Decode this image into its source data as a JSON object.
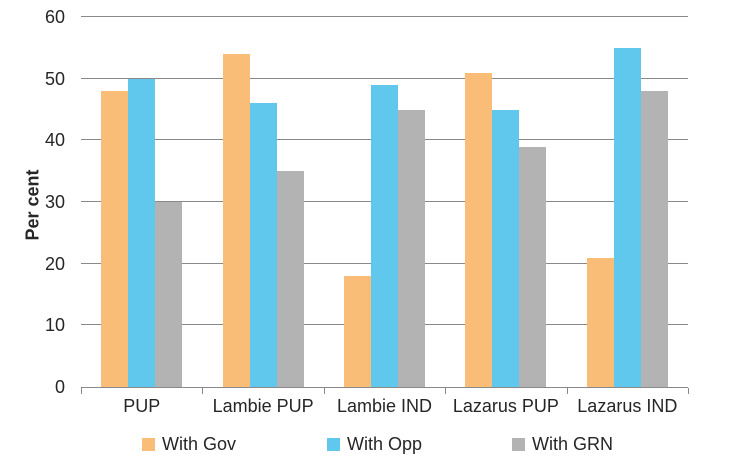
{
  "chart_data": {
    "type": "bar",
    "title": "",
    "ylabel": "Per cent",
    "xlabel": "",
    "ylim": [
      0,
      60
    ],
    "yticks": [
      0,
      10,
      20,
      30,
      40,
      50,
      60
    ],
    "grid": "horizontal",
    "legend_position": "bottom",
    "categories": [
      "PUP",
      "Lambie PUP",
      "Lambie IND",
      "Lazarus PUP",
      "Lazarus IND"
    ],
    "series": [
      {
        "name": "With Gov",
        "color": "#FABD78",
        "values": [
          48,
          54,
          18,
          51,
          21
        ]
      },
      {
        "name": "With Opp",
        "color": "#5FC8EC",
        "values": [
          50,
          46,
          49,
          45,
          55
        ]
      },
      {
        "name": "With GRN",
        "color": "#B3B3B3",
        "values": [
          30,
          35,
          45,
          39,
          48
        ]
      }
    ],
    "colors": {
      "gridline": "#898989",
      "axis": "#898989",
      "text": "#262626",
      "background": "#ffffff"
    }
  }
}
